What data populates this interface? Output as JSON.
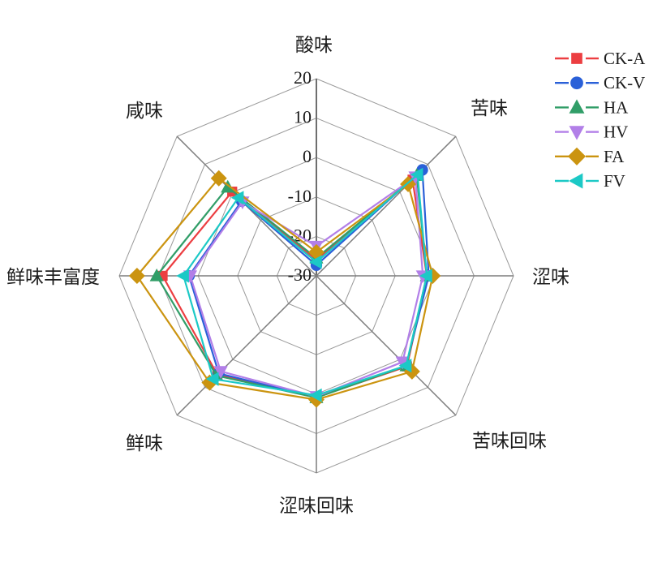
{
  "figure": {
    "background": "#ffffff",
    "grid_color": "#9a9a9a",
    "spoke_color": "#7d7d7d",
    "text_color": "#1c1c1c"
  },
  "chart_data": {
    "type": "radar",
    "title": "",
    "categories": [
      "酸味",
      "苦味",
      "涩味",
      "苦味回味",
      "涩味回味",
      "鲜味",
      "鲜味丰富度",
      "咸味"
    ],
    "axis_range": [
      -30,
      20
    ],
    "tick_values": [
      20,
      10,
      0,
      -10,
      -20,
      -30
    ],
    "grid": true,
    "legend_position": "top-right",
    "series": [
      {
        "name": "CK-A",
        "color": "#ec3e41",
        "marker": "square",
        "values": [
          -26.0,
          4.5,
          -2.0,
          2.5,
          0.8,
          5.5,
          9.0,
          0.2
        ]
      },
      {
        "name": "CK-V",
        "color": "#2a60d8",
        "marker": "circle",
        "values": [
          -27.3,
          8.0,
          -1.5,
          2.2,
          0.8,
          5.0,
          2.3,
          -3.2
        ]
      },
      {
        "name": "HA",
        "color": "#319e68",
        "marker": "triangle-up",
        "values": [
          -25.5,
          6.0,
          -2.0,
          2.3,
          0.9,
          5.8,
          10.5,
          1.8
        ]
      },
      {
        "name": "HV",
        "color": "#b27fe8",
        "marker": "triangle-down",
        "values": [
          -22.5,
          5.5,
          -3.0,
          0.9,
          0.6,
          4.3,
          2.0,
          -3.5
        ]
      },
      {
        "name": "FA",
        "color": "#cb9410",
        "marker": "diamond",
        "values": [
          -24.0,
          2.9,
          -0.5,
          4.3,
          1.4,
          8.3,
          15.5,
          5.0
        ]
      },
      {
        "name": "FV",
        "color": "#1cc9c6",
        "marker": "triangle-left",
        "values": [
          -26.5,
          6.3,
          -2.0,
          2.2,
          0.3,
          7.0,
          3.7,
          -2.0
        ]
      }
    ]
  }
}
